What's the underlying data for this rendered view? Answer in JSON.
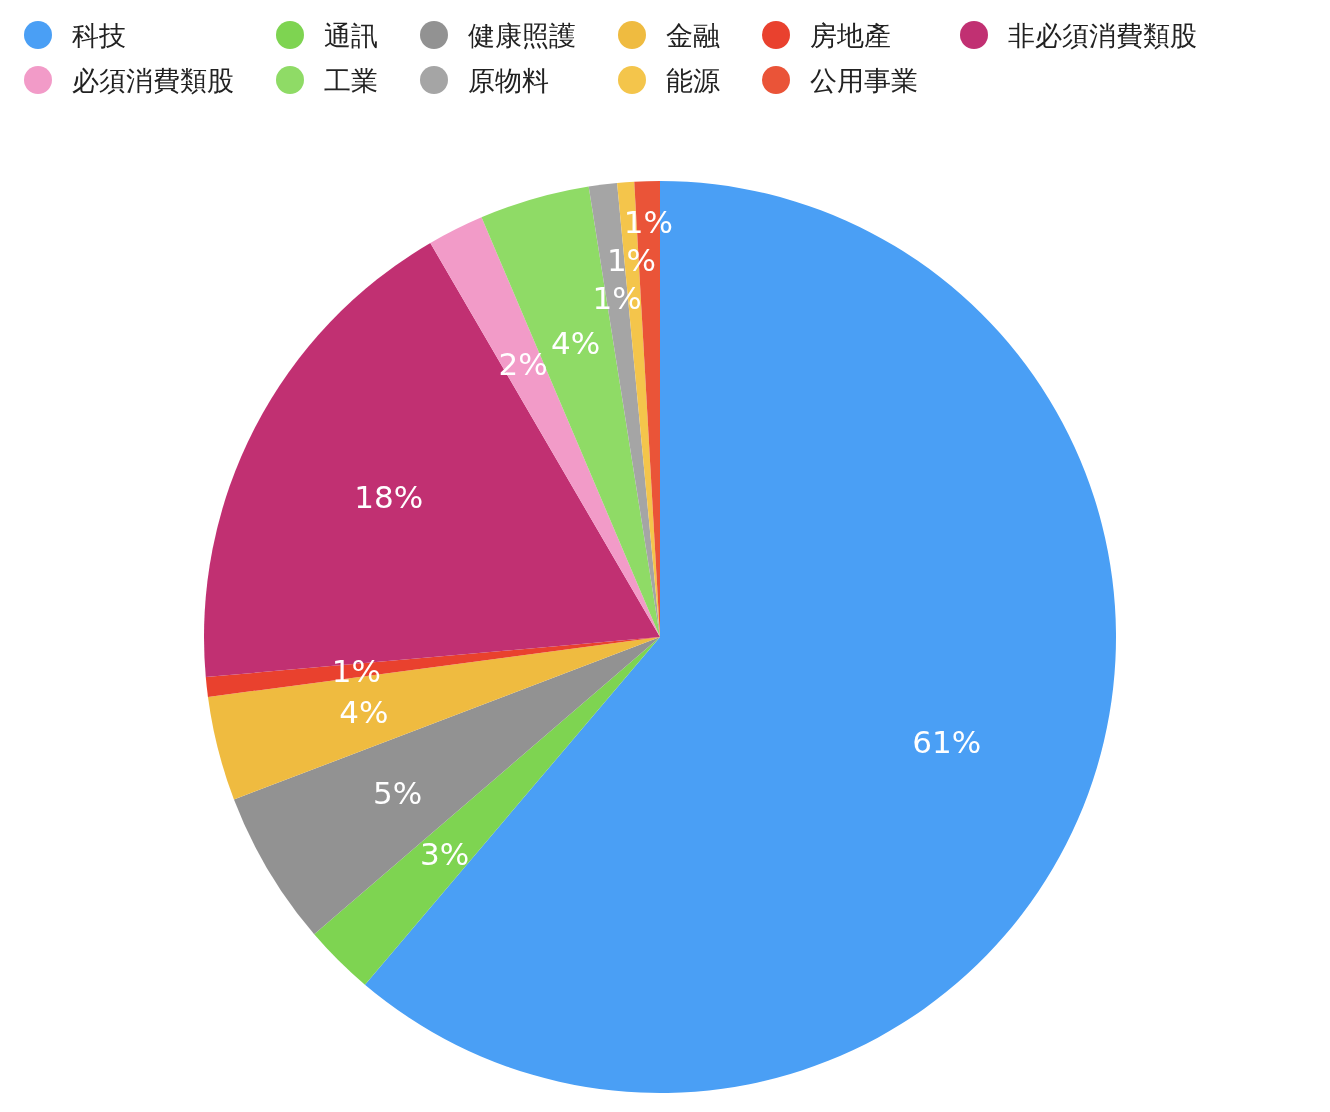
{
  "chart_data": {
    "type": "pie",
    "categories": [
      "科技",
      "通訊",
      "健康照護",
      "金融",
      "房地產",
      "非必須消費類股",
      "必須消費類股",
      "工業",
      "原物料",
      "能源",
      "公用事業"
    ],
    "values": [
      61.2,
      2.5,
      5.5,
      3.7,
      0.7,
      18.0,
      2.0,
      3.9,
      1.0,
      0.6,
      0.9
    ],
    "colors": [
      "#4a9ff5",
      "#7ed451",
      "#929292",
      "#efbb40",
      "#e9412e",
      "#c13072",
      "#f29bc8",
      "#8fdb66",
      "#a5a5a5",
      "#f4c54b",
      "#ea5438"
    ],
    "value_labels": [
      "61%",
      "3%",
      "5%",
      "4%",
      "1%",
      "18%",
      "2%",
      "4%",
      "1%",
      "1%",
      "1%"
    ],
    "legend": "top"
  }
}
